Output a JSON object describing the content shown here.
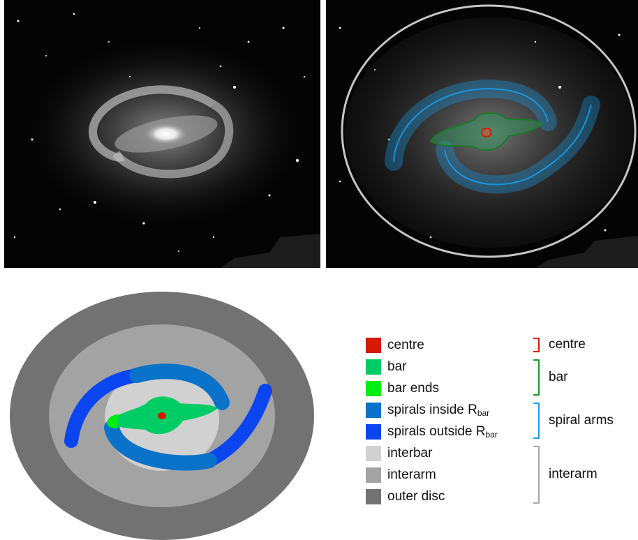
{
  "colors": {
    "centre": "#d41a00",
    "bar": "#00cc66",
    "bar_ends": "#00ee11",
    "spirals_inside": "#0a72c8",
    "spirals_outside": "#0a45f0",
    "interbar": "#d1d1d1",
    "interarm": "#a3a3a3",
    "outer_disc": "#727272",
    "bracket_centre": "#d41a00",
    "bracket_bar": "#1a9a2a",
    "bracket_spiral": "#1aa0ea",
    "bracket_interarm": "#a8a8a8"
  },
  "legend": {
    "items": [
      {
        "label": "centre",
        "sub": "",
        "color_key": "centre"
      },
      {
        "label": "bar",
        "sub": "",
        "color_key": "bar"
      },
      {
        "label": "bar ends",
        "sub": "",
        "color_key": "bar_ends"
      },
      {
        "label": "spirals inside R",
        "sub": "bar",
        "color_key": "spirals_inside"
      },
      {
        "label": "spirals outside R",
        "sub": "bar",
        "color_key": "spirals_outside"
      },
      {
        "label": "interbar",
        "sub": "",
        "color_key": "interbar"
      },
      {
        "label": "interarm",
        "sub": "",
        "color_key": "interarm"
      },
      {
        "label": "outer disc",
        "sub": "",
        "color_key": "outer_disc"
      }
    ],
    "groups": [
      {
        "label": "centre",
        "color_key": "bracket_centre"
      },
      {
        "label": "bar",
        "color_key": "bracket_bar"
      },
      {
        "label": "spiral arms",
        "color_key": "bracket_spiral"
      },
      {
        "label": "interarm",
        "color_key": "bracket_interarm"
      }
    ]
  }
}
